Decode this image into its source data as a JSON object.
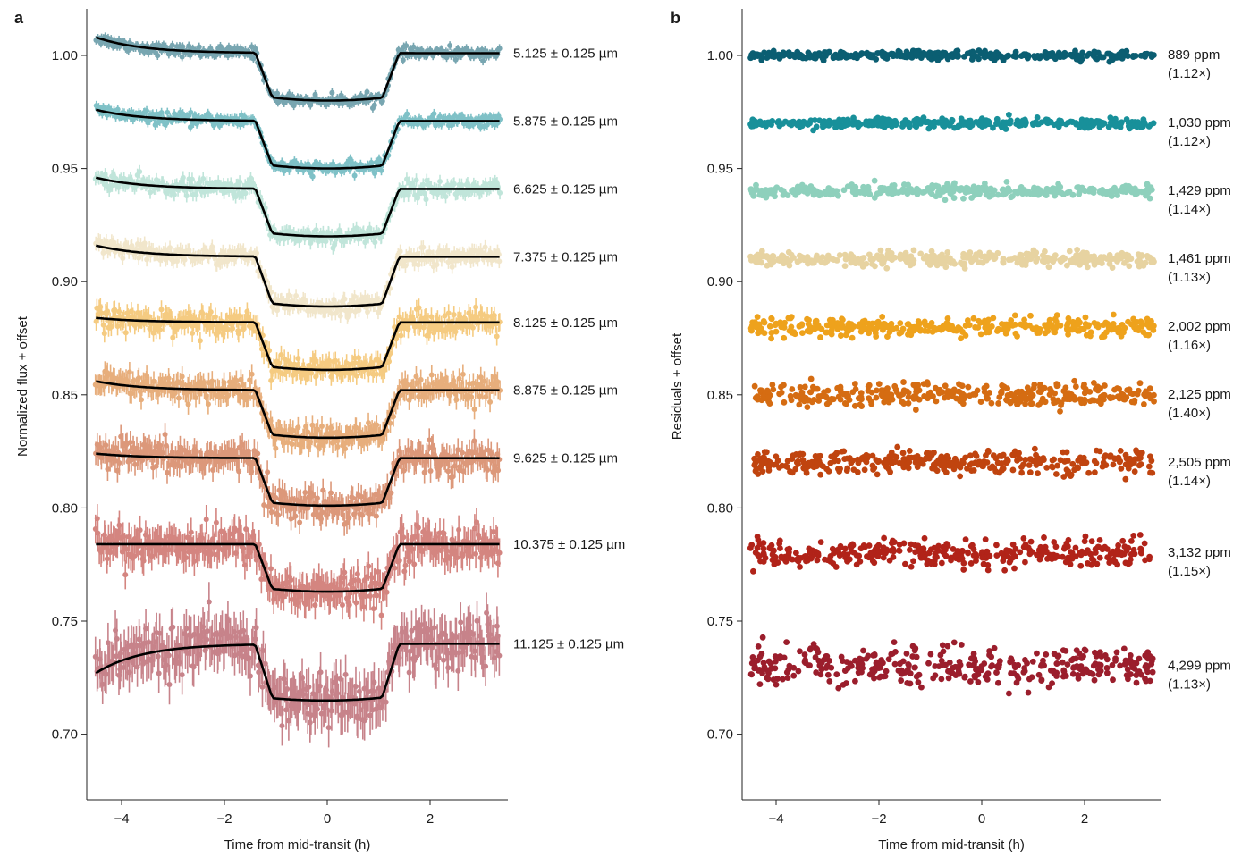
{
  "chart_data": [
    {
      "panel": "a",
      "type": "scatter",
      "xlabel": "Time from mid-transit (h)",
      "ylabel": "Normalized flux + offset",
      "xlim": [
        -4.6,
        3.6
      ],
      "ylim": [
        0.675,
        1.02
      ],
      "xticks": [
        -4,
        -2,
        0,
        2
      ],
      "xtick_labels": [
        "−4",
        "−2",
        "0",
        "2"
      ],
      "yticks": [
        0.7,
        0.75,
        0.8,
        0.85,
        0.9,
        0.95,
        1.0
      ],
      "ytick_labels": [
        "0.70",
        "0.75",
        "0.80",
        "0.85",
        "0.90",
        "0.95",
        "1.00"
      ],
      "transit": {
        "t1": -1.4,
        "t2": -1.05,
        "t3": 1.05,
        "t4": 1.4
      },
      "model_color": "#000000",
      "series": [
        {
          "label": "5.125 ± 0.125 µm",
          "color": "#0b5e72",
          "x_range": [
            -4.5,
            3.35
          ],
          "out_of_transit_flux": 1.001,
          "in_transit_flux": 0.98,
          "start_flux": 1.008,
          "scatter": 0.0012
        },
        {
          "label": "5.875 ± 0.125 µm",
          "color": "#18909a",
          "x_range": [
            -4.5,
            3.35
          ],
          "out_of_transit_flux": 0.971,
          "in_transit_flux": 0.95,
          "start_flux": 0.976,
          "scatter": 0.0013
        },
        {
          "label": "6.625 ± 0.125 µm",
          "color": "#8ed0bc",
          "x_range": [
            -4.5,
            3.35
          ],
          "out_of_transit_flux": 0.941,
          "in_transit_flux": 0.92,
          "start_flux": 0.946,
          "scatter": 0.0018
        },
        {
          "label": "7.375 ± 0.125 µm",
          "color": "#e7d3a1",
          "x_range": [
            -4.5,
            3.35
          ],
          "out_of_transit_flux": 0.911,
          "in_transit_flux": 0.889,
          "start_flux": 0.916,
          "scatter": 0.0019
        },
        {
          "label": "8.125 ± 0.125 µm",
          "color": "#eea21c",
          "x_range": [
            -4.5,
            3.35
          ],
          "out_of_transit_flux": 0.882,
          "in_transit_flux": 0.861,
          "start_flux": 0.884,
          "scatter": 0.0025
        },
        {
          "label": "8.875 ± 0.125 µm",
          "color": "#d56c12",
          "x_range": [
            -4.5,
            3.35
          ],
          "out_of_transit_flux": 0.852,
          "in_transit_flux": 0.831,
          "start_flux": 0.856,
          "scatter": 0.0028
        },
        {
          "label": "9.625 ± 0.125 µm",
          "color": "#c0440f",
          "x_range": [
            -4.5,
            3.35
          ],
          "out_of_transit_flux": 0.822,
          "in_transit_flux": 0.801,
          "start_flux": 0.824,
          "scatter": 0.0032
        },
        {
          "label": "10.375 ± 0.125 µm",
          "color": "#b12319",
          "x_range": [
            -4.5,
            3.35
          ],
          "out_of_transit_flux": 0.784,
          "in_transit_flux": 0.763,
          "start_flux": 0.784,
          "scatter": 0.004
        },
        {
          "label": "11.125 ± 0.125 µm",
          "color": "#9b1e2c",
          "x_range": [
            -4.5,
            3.35
          ],
          "out_of_transit_flux": 0.74,
          "in_transit_flux": 0.715,
          "start_flux": 0.727,
          "scatter": 0.0055
        }
      ]
    },
    {
      "panel": "b",
      "type": "scatter",
      "xlabel": "Time from mid-transit (h)",
      "ylabel": "Residuals + offset",
      "xlim": [
        -4.6,
        3.6
      ],
      "ylim": [
        0.675,
        1.02
      ],
      "xticks": [
        -4,
        -2,
        0,
        2
      ],
      "xtick_labels": [
        "−4",
        "−2",
        "0",
        "2"
      ],
      "yticks": [
        0.7,
        0.75,
        0.8,
        0.85,
        0.9,
        0.95,
        1.0
      ],
      "ytick_labels": [
        "0.70",
        "0.75",
        "0.80",
        "0.85",
        "0.90",
        "0.95",
        "1.00"
      ],
      "series": [
        {
          "rms": "889 ppm",
          "factor": "(1.12×)",
          "color": "#0b5e72",
          "offset": 1.0,
          "x_range": [
            -4.5,
            3.35
          ],
          "scatter": 0.0009
        },
        {
          "rms": "1,030 ppm",
          "factor": "(1.12×)",
          "color": "#18909a",
          "offset": 0.97,
          "x_range": [
            -4.5,
            3.35
          ],
          "scatter": 0.001
        },
        {
          "rms": "1,429 ppm",
          "factor": "(1.14×)",
          "color": "#8ed0bc",
          "offset": 0.94,
          "x_range": [
            -4.5,
            3.35
          ],
          "scatter": 0.0014
        },
        {
          "rms": "1,461 ppm",
          "factor": "(1.13×)",
          "color": "#e7d3a1",
          "offset": 0.91,
          "x_range": [
            -4.5,
            3.35
          ],
          "scatter": 0.0015
        },
        {
          "rms": "2,002 ppm",
          "factor": "(1.16×)",
          "color": "#eea21c",
          "offset": 0.88,
          "x_range": [
            -4.5,
            3.35
          ],
          "scatter": 0.002
        },
        {
          "rms": "2,125 ppm",
          "factor": "(1.40×)",
          "color": "#d56c12",
          "offset": 0.85,
          "x_range": [
            -4.5,
            3.35
          ],
          "scatter": 0.0025
        },
        {
          "rms": "2,505 ppm",
          "factor": "(1.14×)",
          "color": "#c0440f",
          "offset": 0.82,
          "x_range": [
            -4.5,
            3.35
          ],
          "scatter": 0.0025
        },
        {
          "rms": "3,132 ppm",
          "factor": "(1.15×)",
          "color": "#b12319",
          "offset": 0.78,
          "x_range": [
            -4.5,
            3.35
          ],
          "scatter": 0.0031
        },
        {
          "rms": "4,299 ppm",
          "factor": "(1.13×)",
          "color": "#9b1e2c",
          "offset": 0.73,
          "x_range": [
            -4.5,
            3.35
          ],
          "scatter": 0.0043
        }
      ]
    }
  ]
}
